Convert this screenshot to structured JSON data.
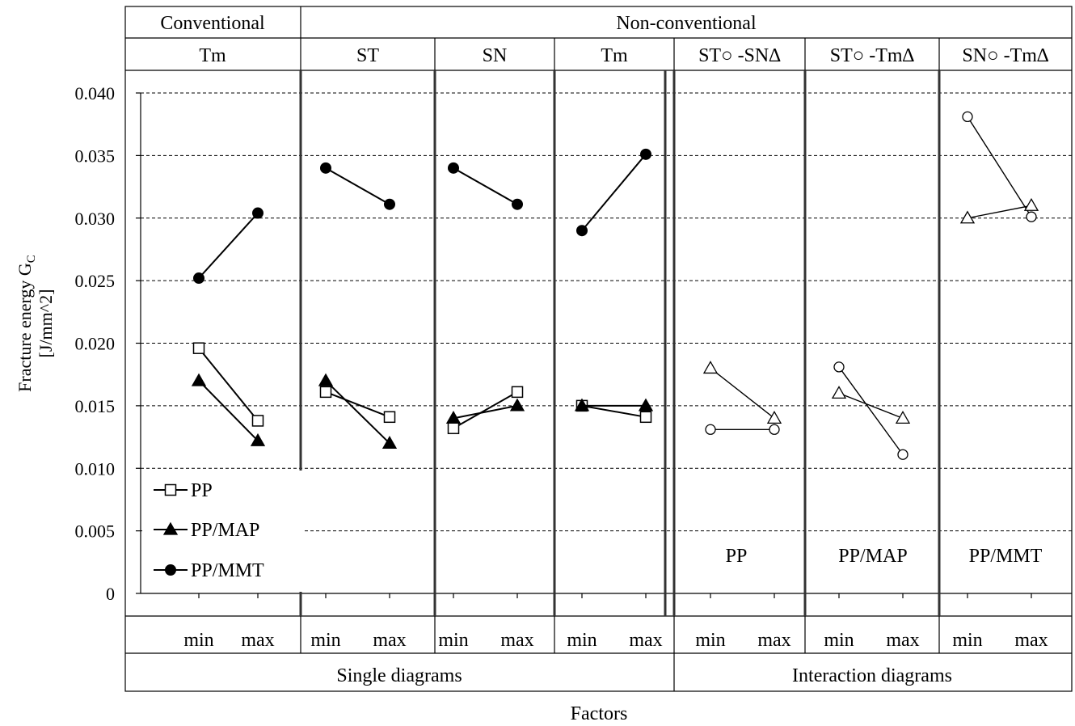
{
  "header": {
    "groups": [
      "Conventional",
      "Non-conventional"
    ],
    "factors": [
      "Tm",
      "ST",
      "SN",
      "Tm",
      "ST○ -SN∆",
      "ST○ -Tm∆",
      "SN○ -Tm∆"
    ]
  },
  "footer": {
    "sections": [
      "Single diagrams",
      "Interaction diagrams"
    ],
    "min_label": "min",
    "max_label": "max",
    "xlabel": "Factors"
  },
  "chart_data": {
    "type": "line",
    "ylabel_line1": "Fracture energy G",
    "ylabel_sub": "C",
    "ylabel_line2": "[J/mm^2]",
    "ylim": [
      0,
      0.04
    ],
    "yticks": [
      "0",
      "0.005",
      "0.010",
      "0.015",
      "0.020",
      "0.025",
      "0.030",
      "0.035",
      "0.040"
    ],
    "grid": true,
    "legend_position": "bottom-left",
    "legend": [
      {
        "name": "PP",
        "marker": "square-open"
      },
      {
        "name": "PP/MAP",
        "marker": "triangle-filled"
      },
      {
        "name": "PP/MMT",
        "marker": "circle-filled"
      }
    ],
    "panel_labels": [
      "PP",
      "PP/MAP",
      "PP/MMT"
    ],
    "panels": [
      {
        "factor": "Tm",
        "series": [
          {
            "name": "PP",
            "marker": "square-open",
            "values": [
              0.0196,
              0.0138
            ]
          },
          {
            "name": "PP/MAP",
            "marker": "triangle-filled",
            "values": [
              0.017,
              0.0122
            ]
          },
          {
            "name": "PP/MMT",
            "marker": "circle-filled",
            "values": [
              0.0252,
              0.0304
            ]
          }
        ]
      },
      {
        "factor": "ST",
        "series": [
          {
            "name": "PP",
            "marker": "square-open",
            "values": [
              0.0161,
              0.0141
            ]
          },
          {
            "name": "PP/MAP",
            "marker": "triangle-filled",
            "values": [
              0.017,
              0.012
            ]
          },
          {
            "name": "PP/MMT",
            "marker": "circle-filled",
            "values": [
              0.034,
              0.0311
            ]
          }
        ]
      },
      {
        "factor": "SN",
        "series": [
          {
            "name": "PP",
            "marker": "square-open",
            "values": [
              0.0132,
              0.0161
            ]
          },
          {
            "name": "PP/MAP",
            "marker": "triangle-filled",
            "values": [
              0.014,
              0.015
            ]
          },
          {
            "name": "PP/MMT",
            "marker": "circle-filled",
            "values": [
              0.034,
              0.0311
            ]
          }
        ]
      },
      {
        "factor": "Tm",
        "series": [
          {
            "name": "PP",
            "marker": "square-open",
            "values": [
              0.015,
              0.0141
            ]
          },
          {
            "name": "PP/MAP",
            "marker": "triangle-filled",
            "values": [
              0.015,
              0.015
            ]
          },
          {
            "name": "PP/MMT",
            "marker": "circle-filled",
            "values": [
              0.029,
              0.0351
            ]
          }
        ]
      },
      {
        "factor": "ST○ -SN∆",
        "series": [
          {
            "name": "○",
            "marker": "circle-open",
            "values": [
              0.0131,
              0.0131
            ]
          },
          {
            "name": "∆",
            "marker": "triangle-open",
            "values": [
              0.018,
              0.014
            ]
          }
        ]
      },
      {
        "factor": "ST○ -Tm∆",
        "series": [
          {
            "name": "○",
            "marker": "circle-open",
            "values": [
              0.0181,
              0.0111
            ]
          },
          {
            "name": "∆",
            "marker": "triangle-open",
            "values": [
              0.016,
              0.014
            ]
          }
        ]
      },
      {
        "factor": "SN○ -Tm∆",
        "series": [
          {
            "name": "○",
            "marker": "circle-open",
            "values": [
              0.0381,
              0.0301
            ]
          },
          {
            "name": "∆",
            "marker": "triangle-open",
            "values": [
              0.03,
              0.031
            ]
          }
        ]
      }
    ]
  }
}
